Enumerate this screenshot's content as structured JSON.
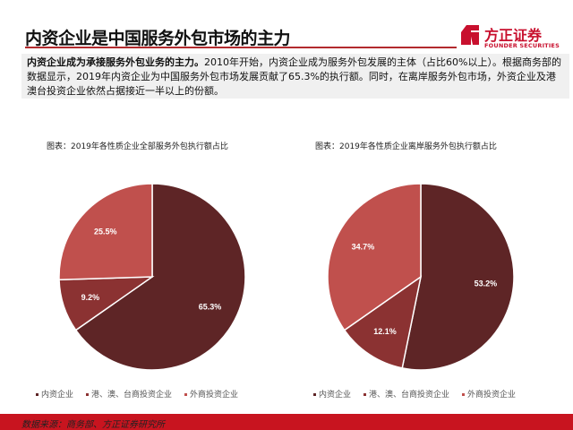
{
  "header": {
    "title": "内资企业是中国服务外包市场的主力",
    "logo_cn": "方正证券",
    "logo_en": "FOUNDER SECURITIES"
  },
  "summary": {
    "bold": "内资企业成为承接服务外包业务的主力。",
    "text": "2010年开始，内资企业成为服务外包发展的主体（占比60%以上）。根据商务部的数据显示，2019年内资企业为中国服务外包市场发展贡献了65.3%的执行额。同时，在离岸服务外包市场，外资企业及港澳台投资企业依然占据接近一半以上的份额。"
  },
  "colors": {
    "dark": "#5e2526",
    "medium": "#8b3232",
    "light": "#c0504d",
    "brand": "#c8141f"
  },
  "chart_data": [
    {
      "type": "pie",
      "title": "图表：2019年各性质企业全部服务外包执行额占比",
      "categories": [
        "内资企业",
        "港、澳、台商投资企业",
        "外商投资企业"
      ],
      "values": [
        65.3,
        9.2,
        25.5
      ],
      "labels": [
        "65.3%",
        "9.2%",
        "25.5%"
      ],
      "legend": "bottom"
    },
    {
      "type": "pie",
      "title": "图表：2019年各性质企业离岸服务外包执行额占比",
      "categories": [
        "内资企业",
        "港、澳、台商投资企业",
        "外商投资企业"
      ],
      "values": [
        53.2,
        12.1,
        34.7
      ],
      "labels": [
        "53.2%",
        "12.1%",
        "34.7%"
      ],
      "legend": "bottom"
    }
  ],
  "footer": {
    "source": "数据来源：商务部、方正证券研究所"
  }
}
